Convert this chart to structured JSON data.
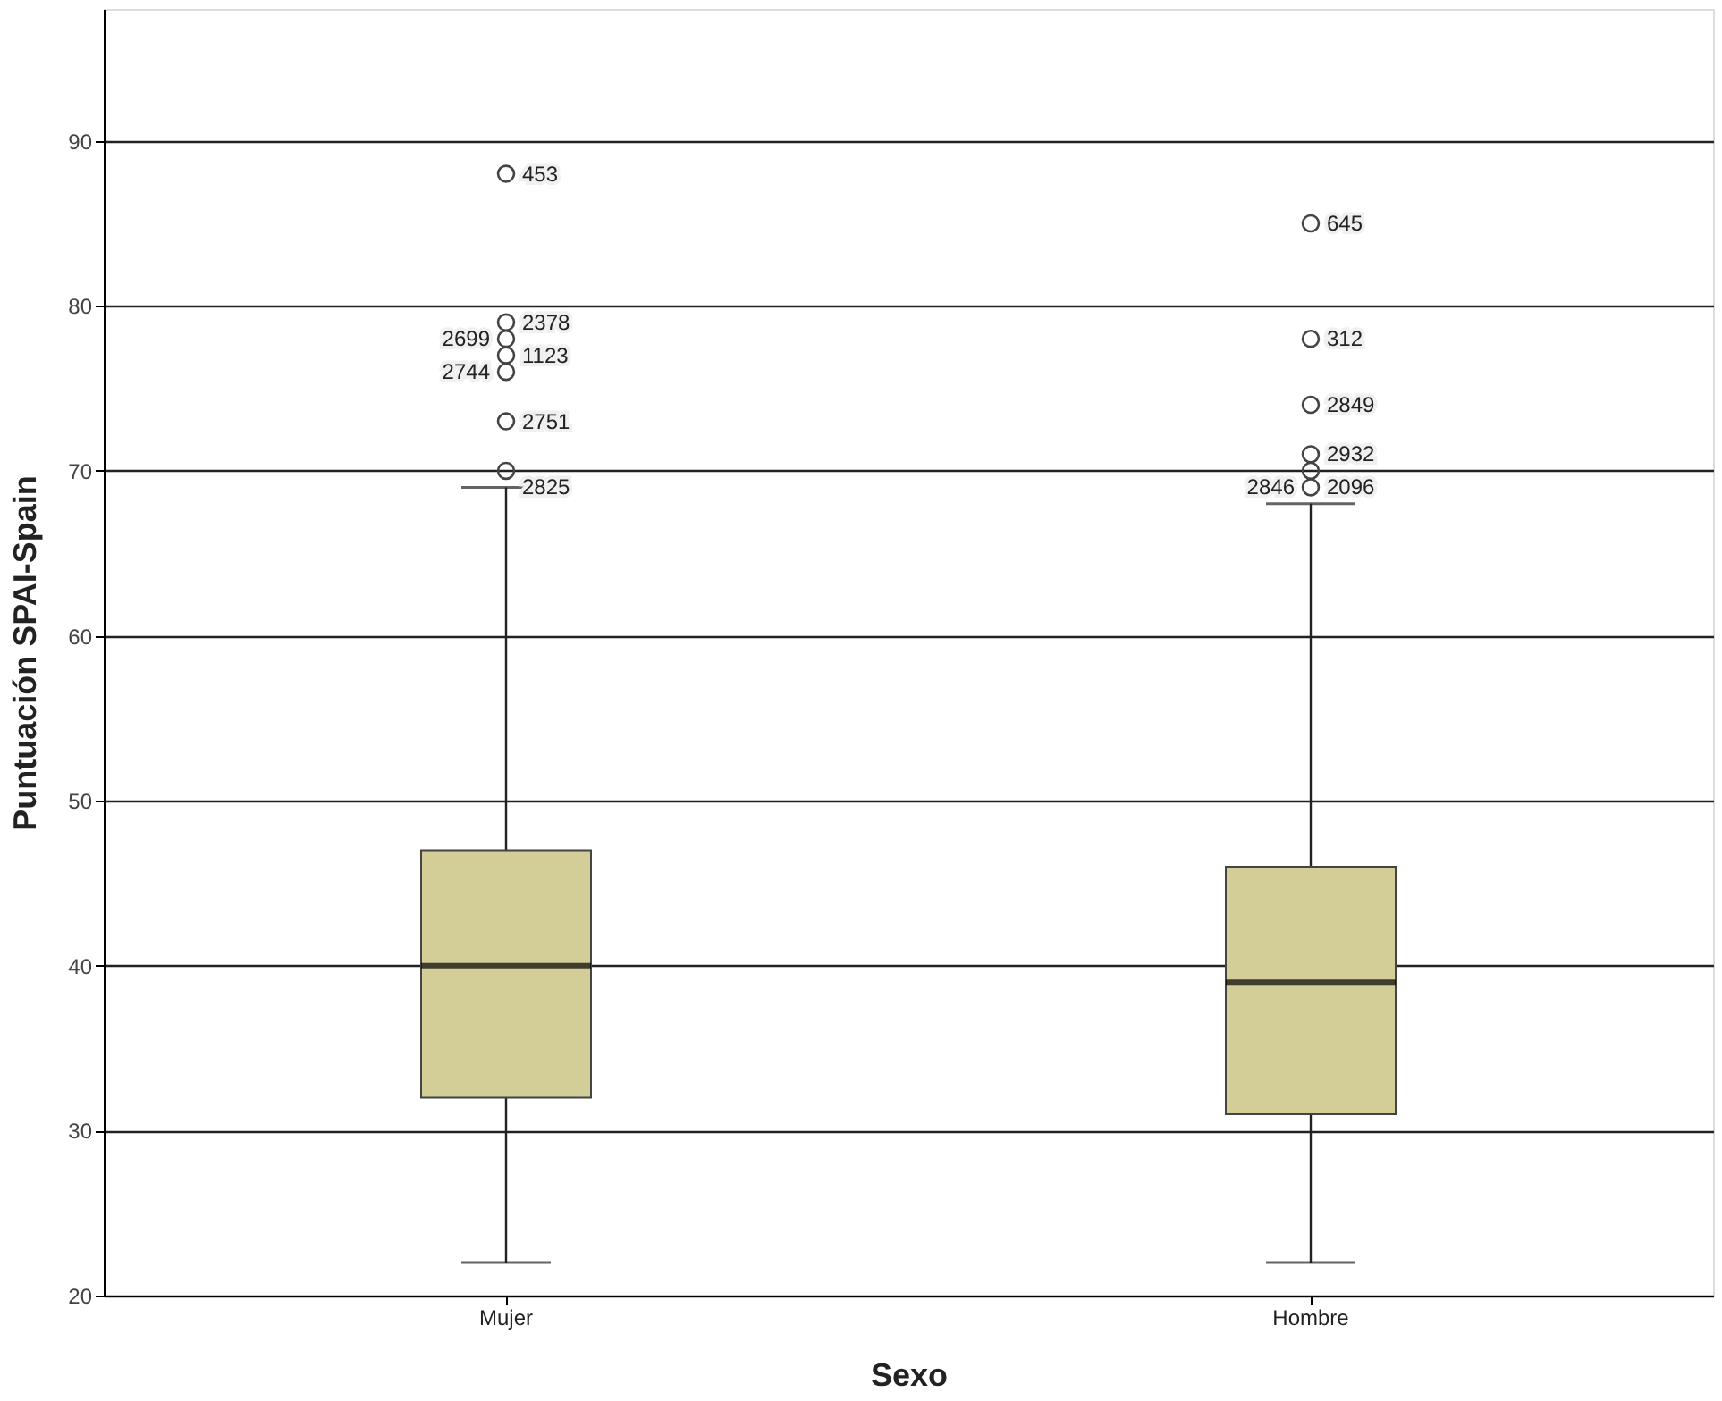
{
  "chart_data": {
    "type": "box",
    "xlabel": "Sexo",
    "ylabel": "Puntuación SPAI-Spain",
    "categories": [
      "Mujer",
      "Hombre"
    ],
    "colors": [
      "#d3ce97",
      "#d3ce97"
    ],
    "boxes": [
      {
        "low": 22,
        "q1": 32,
        "median": 40,
        "q3": 47,
        "high": 69,
        "outliers": [
          88,
          79,
          78,
          77,
          76,
          73,
          70
        ]
      },
      {
        "low": 22,
        "q1": 31,
        "median": 39,
        "q3": 46,
        "high": 68,
        "outliers": [
          85,
          78,
          74,
          71,
          70,
          69
        ]
      }
    ],
    "ylim": [
      20,
      98
    ],
    "yticks": [
      20,
      30,
      40,
      50,
      60,
      70,
      80,
      90
    ],
    "grid": "y",
    "marker": "circle",
    "annotations": [
      "453",
      "2378",
      "2699",
      "1123",
      "2744",
      "2751",
      "2825",
      "645",
      "312",
      "2849",
      "2932",
      "2846",
      "2096"
    ]
  }
}
